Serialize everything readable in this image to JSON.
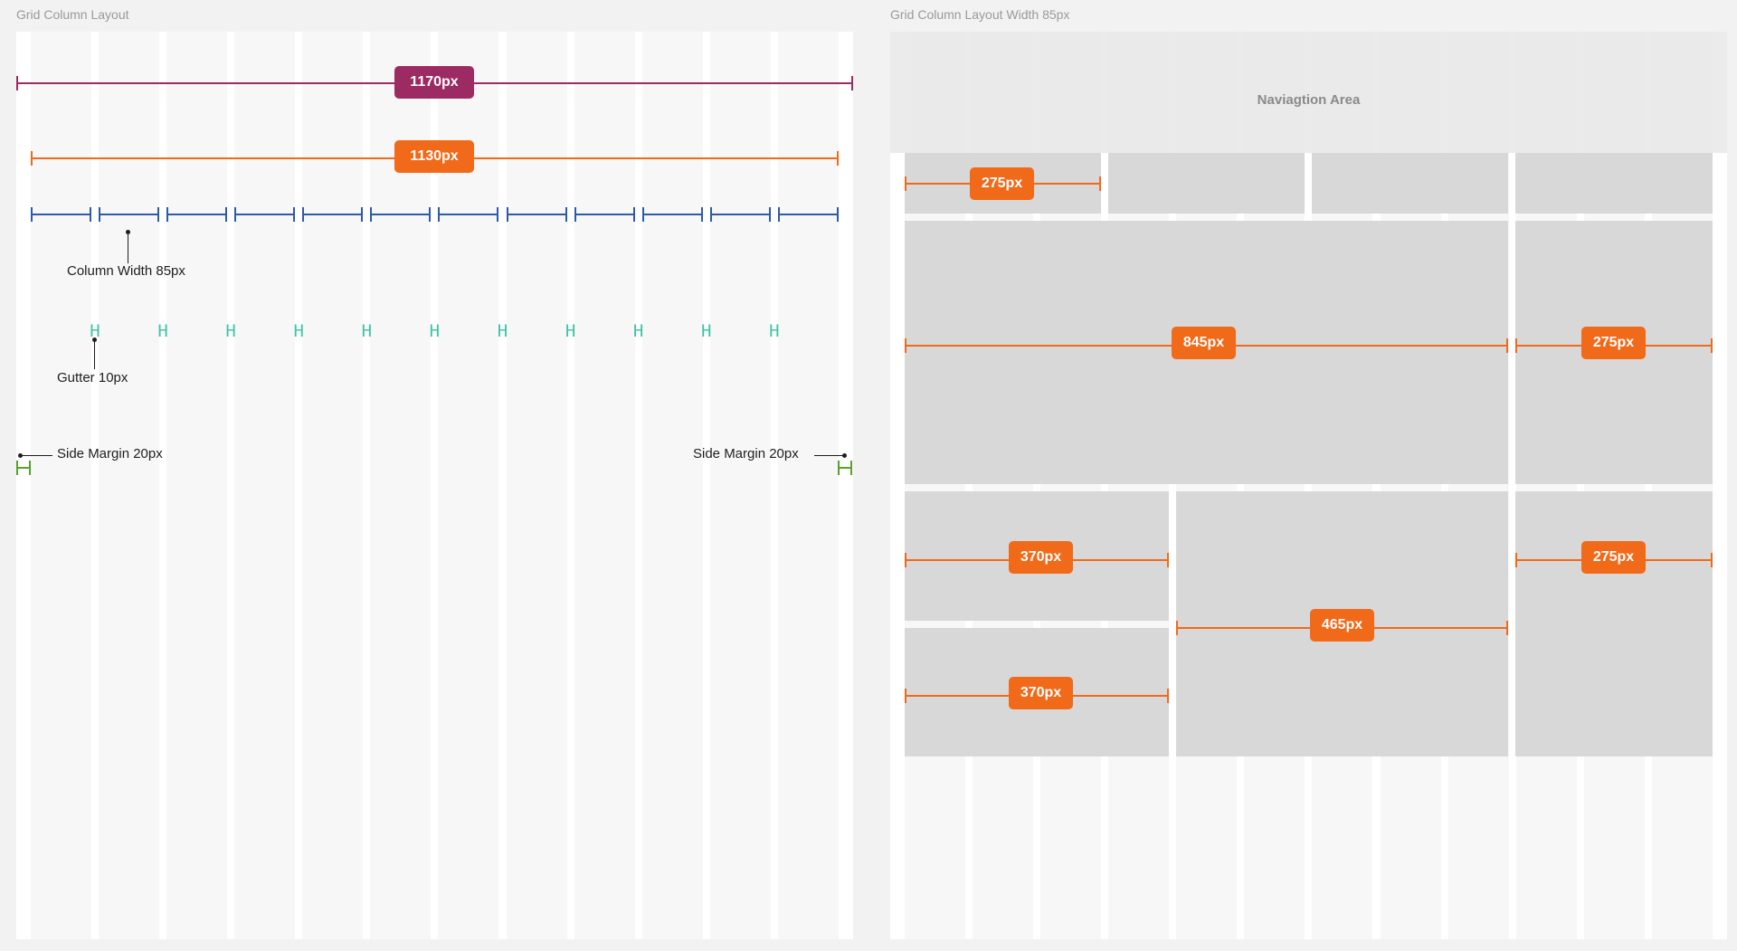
{
  "left_frame": {
    "title": "Grid Column Layout",
    "total_badge": "1170px",
    "container_badge": "1130px",
    "column_label": "Column Width 85px",
    "gutter_label": "Gutter 10px",
    "gutter_glyph": "H",
    "side_margin_left_label": "Side Margin 20px",
    "side_margin_right_label": "Side Margin 20px"
  },
  "right_frame": {
    "title": "Grid Column Layout Width 85px",
    "nav_label": "Naviagtion Area",
    "badges": {
      "b1": "275px",
      "b2": "845px",
      "b3": "275px",
      "b4": "370px",
      "b5": "275px",
      "b6": "465px",
      "b7": "370px"
    }
  },
  "colors": {
    "total": "#9c2b63",
    "container": "#f06a1a",
    "column": "#2e5aa7",
    "gutter": "#3fc4a8",
    "margin": "#5aa02c",
    "annotation": "#1e1e1e"
  }
}
